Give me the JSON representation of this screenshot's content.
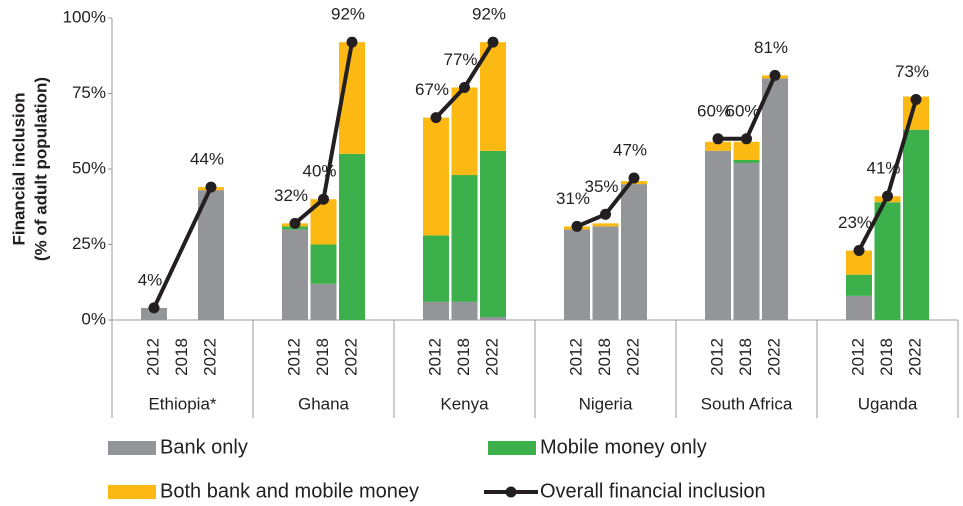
{
  "chart_data": {
    "type": "bar",
    "stacked": true,
    "ylabel": [
      "Financial inclusion",
      "(% of adult population)"
    ],
    "groups": [
      "Ethiopia*",
      "Ghana",
      "Kenya",
      "Nigeria",
      "South Africa",
      "Uganda"
    ],
    "categories": [
      "2012",
      "2018",
      "2022",
      "2012",
      "2018",
      "2022",
      "2012",
      "2018",
      "2022",
      "2012",
      "2018",
      "2022",
      "2012",
      "2018",
      "2022",
      "2012",
      "2018",
      "2022"
    ],
    "series": [
      {
        "name": "Bank only",
        "color": "#939598",
        "type": "bar",
        "values": [
          4,
          null,
          43,
          30,
          12,
          0,
          6,
          6,
          1,
          30,
          31,
          45,
          56,
          52,
          80,
          8,
          0,
          0
        ]
      },
      {
        "name": "Mobile money only",
        "color": "#3cb04a",
        "type": "bar",
        "values": [
          0,
          null,
          0,
          1,
          13,
          55,
          22,
          42,
          55,
          0,
          0,
          0,
          0,
          1,
          0,
          7,
          39,
          63
        ]
      },
      {
        "name": "Both bank and mobile money",
        "color": "#fdb913",
        "type": "bar",
        "values": [
          0,
          null,
          1,
          1,
          15,
          37,
          39,
          29,
          36,
          1,
          1,
          1,
          3,
          6,
          1,
          8,
          2,
          11
        ]
      },
      {
        "name": "Overall financial inclusion",
        "color": "#231f20",
        "type": "line",
        "values": [
          4,
          null,
          44,
          32,
          40,
          92,
          67,
          77,
          92,
          31,
          35,
          47,
          60,
          60,
          81,
          23,
          41,
          73
        ],
        "value_labels": [
          "4%",
          null,
          "44%",
          "32%",
          "40%",
          "92%",
          "67%",
          "77%",
          "92%",
          "31%",
          "35%",
          "47%",
          "60%",
          "60%",
          "81%",
          "23%",
          "41%",
          "73%"
        ]
      }
    ],
    "ylim": [
      0,
      100
    ],
    "yticks": [
      {
        "value": 0,
        "label": "0%"
      },
      {
        "value": 25,
        "label": "25%"
      },
      {
        "value": 50,
        "label": "50%"
      },
      {
        "value": 75,
        "label": "75%"
      },
      {
        "value": 100,
        "label": "100%"
      }
    ],
    "grid": false
  }
}
